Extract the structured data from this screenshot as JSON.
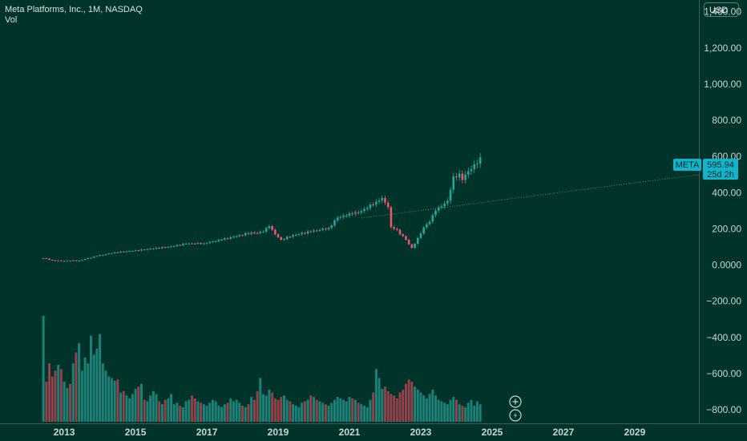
{
  "header": {
    "title": "Meta Platforms, Inc., 1M, NASDAQ",
    "volume_label": "Vol"
  },
  "currency_button": "USD",
  "price_tag": {
    "symbol": "META",
    "price": "595.94",
    "countdown": "25d 2h"
  },
  "colors": {
    "background": "#00332a",
    "up": "#26a69a",
    "down": "#ef5371",
    "tag": "#0fb5cd",
    "trendline": "#6e8c85"
  },
  "icons": [
    "plus-circle-icon",
    "lightning-circle-icon"
  ],
  "chart_data": {
    "type": "candlestick",
    "title": "Meta Platforms, Inc., 1M, NASDAQ",
    "interval": "1M",
    "currency": "USD",
    "last_price": 595.94,
    "y_ticks": [
      "1,400.00",
      "1,200.00",
      "1,000.00",
      "800.00",
      "600.00",
      "400.00",
      "200.00",
      "0.0000",
      "−200.00",
      "−400.00",
      "−600.00",
      "−800.00"
    ],
    "y_tick_values": [
      1400,
      1200,
      1000,
      800,
      600,
      400,
      200,
      0,
      -200,
      -400,
      -600,
      -800
    ],
    "x_ticks": [
      "2013",
      "2015",
      "2017",
      "2019",
      "2021",
      "2023",
      "2025",
      "2027",
      "2029"
    ],
    "ylim": [
      -875,
      1465
    ],
    "xlim": [
      2011.2,
      2030.8
    ],
    "x_start": 2012.417,
    "month_step": 0.08333,
    "anchors": [
      [
        0,
        38
      ],
      [
        3,
        27
      ],
      [
        6,
        22
      ],
      [
        12,
        25
      ],
      [
        18,
        50
      ],
      [
        24,
        70
      ],
      [
        30,
        78
      ],
      [
        36,
        90
      ],
      [
        42,
        100
      ],
      [
        48,
        118
      ],
      [
        54,
        120
      ],
      [
        60,
        140
      ],
      [
        66,
        165
      ],
      [
        70,
        180
      ],
      [
        72,
        176
      ],
      [
        74,
        185
      ],
      [
        76,
        215
      ],
      [
        78,
        170
      ],
      [
        80,
        140
      ],
      [
        84,
        165
      ],
      [
        90,
        185
      ],
      [
        96,
        205
      ],
      [
        99,
        262
      ],
      [
        100,
        265
      ],
      [
        102,
        273
      ],
      [
        104,
        283
      ],
      [
        106,
        290
      ],
      [
        108,
        310
      ],
      [
        110,
        335
      ],
      [
        112,
        350
      ],
      [
        114,
        370
      ],
      [
        115,
        345
      ],
      [
        116,
        320
      ],
      [
        117,
        210
      ],
      [
        118,
        200
      ],
      [
        119,
        195
      ],
      [
        120,
        170
      ],
      [
        121,
        160
      ],
      [
        122,
        140
      ],
      [
        124,
        95
      ],
      [
        125,
        118
      ],
      [
        126,
        150
      ],
      [
        127,
        175
      ],
      [
        128,
        208
      ],
      [
        130,
        240
      ],
      [
        132,
        300
      ],
      [
        134,
        325
      ],
      [
        136,
        355
      ],
      [
        138,
        490
      ],
      [
        140,
        505
      ],
      [
        141,
        470
      ],
      [
        142,
        500
      ],
      [
        144,
        530
      ],
      [
        146,
        560
      ],
      [
        147,
        595.94
      ]
    ],
    "volume_values": [
      145,
      55,
      80,
      62,
      70,
      78,
      72,
      55,
      46,
      52,
      80,
      95,
      108,
      70,
      88,
      80,
      118,
      92,
      100,
      120,
      80,
      70,
      62,
      60,
      56,
      58,
      40,
      42,
      36,
      32,
      38,
      45,
      48,
      52,
      30,
      28,
      36,
      42,
      38,
      28,
      24,
      30,
      32,
      38,
      24,
      26,
      22,
      20,
      28,
      30,
      36,
      32,
      28,
      26,
      24,
      22,
      26,
      30,
      28,
      22,
      20,
      24,
      26,
      32,
      28,
      30,
      26,
      22,
      20,
      24,
      34,
      30,
      42,
      60,
      38,
      36,
      44,
      40,
      32,
      30,
      34,
      36,
      30,
      28,
      24,
      22,
      20,
      26,
      28,
      30,
      36,
      34,
      30,
      28,
      26,
      24,
      22,
      26,
      30,
      34,
      32,
      30,
      28,
      34,
      32,
      30,
      26,
      24,
      22,
      20,
      30,
      40,
      72,
      60,
      45,
      48,
      42,
      38,
      36,
      32,
      40,
      44,
      52,
      58,
      55,
      48,
      44,
      40,
      36,
      32,
      38,
      44,
      36,
      30,
      28,
      26,
      24,
      30,
      34,
      30,
      24,
      22,
      20,
      26,
      30,
      22,
      28,
      24
    ]
  }
}
